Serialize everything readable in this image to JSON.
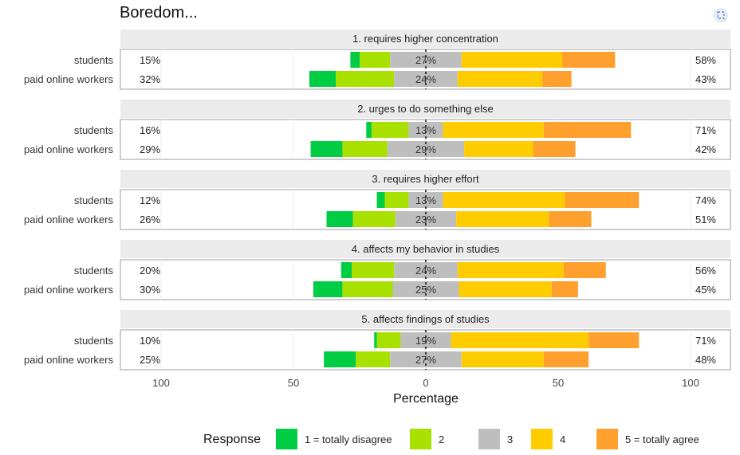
{
  "chart_data": {
    "type": "bar",
    "subtype": "diverging-stacked-horizontal",
    "title": "Boredom...",
    "xlabel": "Percentage",
    "xlim": [
      -100,
      100
    ],
    "x_ticks": [
      -100,
      -50,
      0,
      50,
      100
    ],
    "x_tick_labels": [
      "100",
      "50",
      "0",
      "50",
      "100"
    ],
    "grid": true,
    "legend": {
      "title": "Response",
      "position": "bottom",
      "entries": [
        "1 = totally disagree",
        "2",
        "3",
        "4",
        "5 = totally agree"
      ]
    },
    "colors": [
      "#00cc44",
      "#a8e000",
      "#bebebe",
      "#ffcc00",
      "#ffa02e"
    ],
    "groups": [
      "students",
      "paid online workers"
    ],
    "panels": [
      {
        "title": "1. requires higher concentration",
        "rows": [
          {
            "group": "students",
            "values": [
              3.5,
              11.5,
              27,
              38,
              20
            ],
            "left_label": "15%",
            "center_label": "27%",
            "right_label": "58%"
          },
          {
            "group": "paid online workers",
            "values": [
              10,
              22,
              24,
              32,
              11
            ],
            "left_label": "32%",
            "center_label": "24%",
            "right_label": "43%"
          }
        ]
      },
      {
        "title": "2. urges to do something else",
        "rows": [
          {
            "group": "students",
            "values": [
              2,
              14,
              13,
              38,
              33
            ],
            "left_label": "16%",
            "center_label": "13%",
            "right_label": "71%"
          },
          {
            "group": "paid online workers",
            "values": [
              12,
              17,
              29,
              26,
              16
            ],
            "left_label": "29%",
            "center_label": "29%",
            "right_label": "42%"
          }
        ]
      },
      {
        "title": "3. requires higher effort",
        "rows": [
          {
            "group": "students",
            "values": [
              3,
              9,
              13,
              46,
              28
            ],
            "left_label": "12%",
            "center_label": "13%",
            "right_label": "74%"
          },
          {
            "group": "paid online workers",
            "values": [
              10,
              16,
              23,
              35,
              16
            ],
            "left_label": "26%",
            "center_label": "23%",
            "right_label": "51%"
          }
        ]
      },
      {
        "title": "4. affects my behavior in studies",
        "rows": [
          {
            "group": "students",
            "values": [
              4,
              16,
              24,
              40,
              16
            ],
            "left_label": "20%",
            "center_label": "24%",
            "right_label": "56%"
          },
          {
            "group": "paid online workers",
            "values": [
              11,
              19,
              25,
              35,
              10
            ],
            "left_label": "30%",
            "center_label": "25%",
            "right_label": "45%"
          }
        ]
      },
      {
        "title": "5. affects findings of studies",
        "rows": [
          {
            "group": "students",
            "values": [
              1,
              9,
              19,
              52,
              19
            ],
            "left_label": "10%",
            "center_label": "19%",
            "right_label": "71%"
          },
          {
            "group": "paid online workers",
            "values": [
              12,
              13,
              27,
              31,
              17
            ],
            "left_label": "25%",
            "center_label": "27%",
            "right_label": "48%"
          }
        ]
      }
    ]
  },
  "corner_icon": "expand-icon"
}
